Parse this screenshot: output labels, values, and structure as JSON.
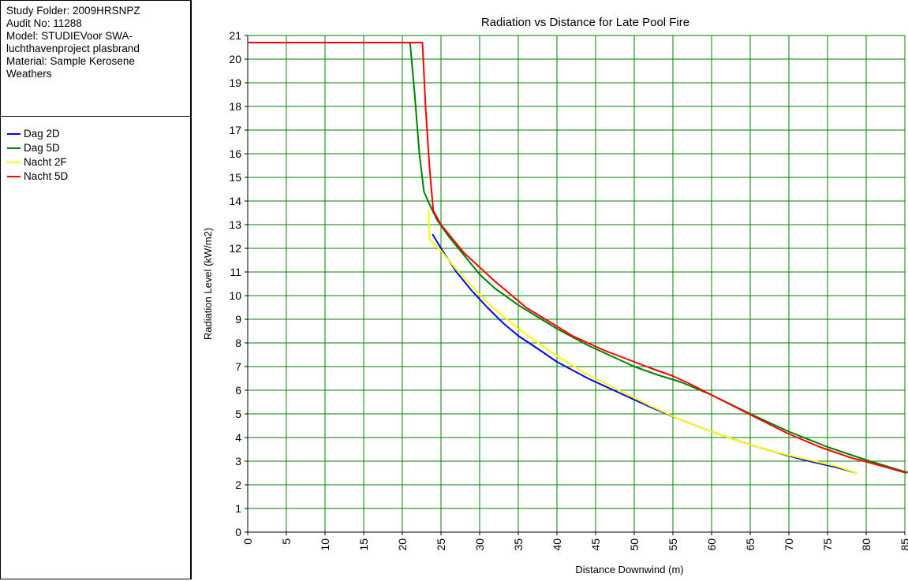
{
  "info": {
    "lines": [
      "Study Folder: 2009HRSNPZ",
      "Audit No: 11288",
      "Model: STUDIEVoor SWA-",
      "luchthavenproject plasbrand",
      "Material: Sample Kerosene",
      "Weathers"
    ]
  },
  "colors": {
    "grid": "#008000",
    "background": "#ffffff",
    "axis": "#000000"
  },
  "chart_data": {
    "type": "line",
    "title": "Radiation vs Distance for Late Pool Fire",
    "xlabel": "Distance Downwind (m)",
    "ylabel": "Radiation Level (kW/m2)",
    "xlim": [
      0,
      85
    ],
    "ylim": [
      0,
      21
    ],
    "xticks": [
      0,
      5,
      10,
      15,
      20,
      25,
      30,
      35,
      40,
      45,
      50,
      55,
      60,
      65,
      70,
      75,
      80,
      85
    ],
    "yticks": [
      0,
      1,
      2,
      3,
      4,
      5,
      6,
      7,
      8,
      9,
      10,
      11,
      12,
      13,
      14,
      15,
      16,
      17,
      18,
      19,
      20,
      21
    ],
    "grid": true,
    "legend": "left-panel",
    "series": [
      {
        "name": "Dag 2D",
        "color": "#0000ff",
        "points": [
          [
            23.9,
            12.6
          ],
          [
            25,
            12.0
          ],
          [
            27,
            11.0
          ],
          [
            29,
            10.2
          ],
          [
            31,
            9.5
          ],
          [
            33,
            8.85
          ],
          [
            35,
            8.3
          ],
          [
            38,
            7.65
          ],
          [
            40,
            7.2
          ],
          [
            44,
            6.5
          ],
          [
            48,
            5.9
          ],
          [
            52,
            5.3
          ],
          [
            56,
            4.75
          ],
          [
            60,
            4.25
          ],
          [
            64,
            3.8
          ],
          [
            68,
            3.4
          ],
          [
            72,
            3.05
          ],
          [
            76,
            2.75
          ],
          [
            78.8,
            2.5
          ]
        ]
      },
      {
        "name": "Dag 5D",
        "color": "#008000",
        "points": [
          [
            0,
            20.7
          ],
          [
            21,
            20.7
          ],
          [
            21.6,
            18.5
          ],
          [
            22.2,
            16.0
          ],
          [
            22.8,
            14.4
          ],
          [
            23.6,
            13.8
          ],
          [
            24.5,
            13.2
          ],
          [
            26,
            12.5
          ],
          [
            28,
            11.7
          ],
          [
            30,
            10.9
          ],
          [
            32,
            10.3
          ],
          [
            35,
            9.6
          ],
          [
            38,
            9.0
          ],
          [
            40,
            8.6
          ],
          [
            44,
            7.9
          ],
          [
            48,
            7.3
          ],
          [
            50,
            7.0
          ],
          [
            53,
            6.65
          ],
          [
            56,
            6.35
          ],
          [
            60,
            5.8
          ],
          [
            65,
            5.0
          ],
          [
            70,
            4.25
          ],
          [
            75,
            3.6
          ],
          [
            80,
            3.05
          ],
          [
            85,
            2.55
          ],
          [
            86,
            2.5
          ]
        ]
      },
      {
        "name": "Nacht 2F",
        "color": "#ffff00",
        "points": [
          [
            23.4,
            13.6
          ],
          [
            23.5,
            12.4
          ],
          [
            25,
            11.9
          ],
          [
            27,
            11.1
          ],
          [
            29,
            10.4
          ],
          [
            31,
            9.7
          ],
          [
            33,
            9.15
          ],
          [
            35,
            8.6
          ],
          [
            38,
            7.9
          ],
          [
            40,
            7.45
          ],
          [
            44,
            6.65
          ],
          [
            48,
            6.0
          ],
          [
            52,
            5.35
          ],
          [
            56,
            4.75
          ],
          [
            60,
            4.25
          ],
          [
            64,
            3.8
          ],
          [
            68,
            3.4
          ],
          [
            72,
            3.1
          ],
          [
            76,
            2.8
          ],
          [
            78.8,
            2.5
          ]
        ]
      },
      {
        "name": "Nacht 5D",
        "color": "#ff0000",
        "points": [
          [
            0,
            20.7
          ],
          [
            22.6,
            20.7
          ],
          [
            23.0,
            18.0
          ],
          [
            23.5,
            15.5
          ],
          [
            24.0,
            13.6
          ],
          [
            25,
            13.0
          ],
          [
            26.5,
            12.4
          ],
          [
            28,
            11.8
          ],
          [
            30,
            11.2
          ],
          [
            32,
            10.6
          ],
          [
            34,
            10.05
          ],
          [
            36,
            9.5
          ],
          [
            38,
            9.1
          ],
          [
            40,
            8.7
          ],
          [
            42,
            8.3
          ],
          [
            44,
            8.0
          ],
          [
            46,
            7.7
          ],
          [
            48,
            7.45
          ],
          [
            50,
            7.2
          ],
          [
            52,
            6.95
          ],
          [
            55,
            6.6
          ],
          [
            57,
            6.3
          ],
          [
            60,
            5.8
          ],
          [
            63,
            5.3
          ],
          [
            66,
            4.8
          ],
          [
            70,
            4.15
          ],
          [
            74,
            3.6
          ],
          [
            78,
            3.15
          ],
          [
            82,
            2.8
          ],
          [
            85.2,
            2.5
          ]
        ]
      }
    ]
  }
}
